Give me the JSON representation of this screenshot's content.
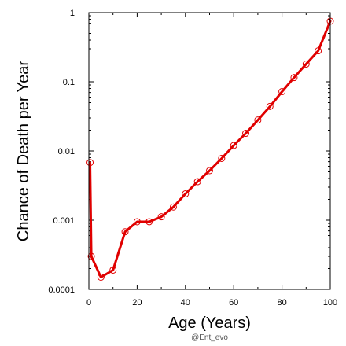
{
  "chart_data": {
    "type": "line",
    "title": "",
    "xlabel": "Age (Years)",
    "ylabel": "Chance of Death per Year",
    "xlim": [
      0,
      100
    ],
    "ylim": [
      0.0001,
      1
    ],
    "y_scale": "log",
    "x_ticks": [
      0,
      20,
      40,
      60,
      80,
      100
    ],
    "x_tick_labels": [
      "0",
      "20",
      "40",
      "60",
      "80",
      "100"
    ],
    "y_ticks": [
      0.0001,
      0.001,
      0.01,
      0.1,
      1
    ],
    "y_tick_labels": [
      "0.0001",
      "0.001",
      "0.01",
      "0.1",
      "1"
    ],
    "grid": false,
    "legend": "none",
    "series": [
      {
        "color": "#e00000",
        "marker": "open-circle",
        "x": [
          0.5,
          1,
          5,
          10,
          15,
          20,
          25,
          30,
          35,
          40,
          45,
          50,
          55,
          60,
          65,
          70,
          75,
          80,
          85,
          90,
          95,
          100
        ],
        "y": [
          0.0068,
          0.0003,
          0.00015,
          0.00019,
          0.00068,
          0.00095,
          0.00095,
          0.00112,
          0.00155,
          0.0024,
          0.0036,
          0.0052,
          0.0078,
          0.012,
          0.018,
          0.028,
          0.044,
          0.072,
          0.115,
          0.18,
          0.28,
          0.75
        ]
      }
    ]
  },
  "watermark": "@Ent_evo"
}
